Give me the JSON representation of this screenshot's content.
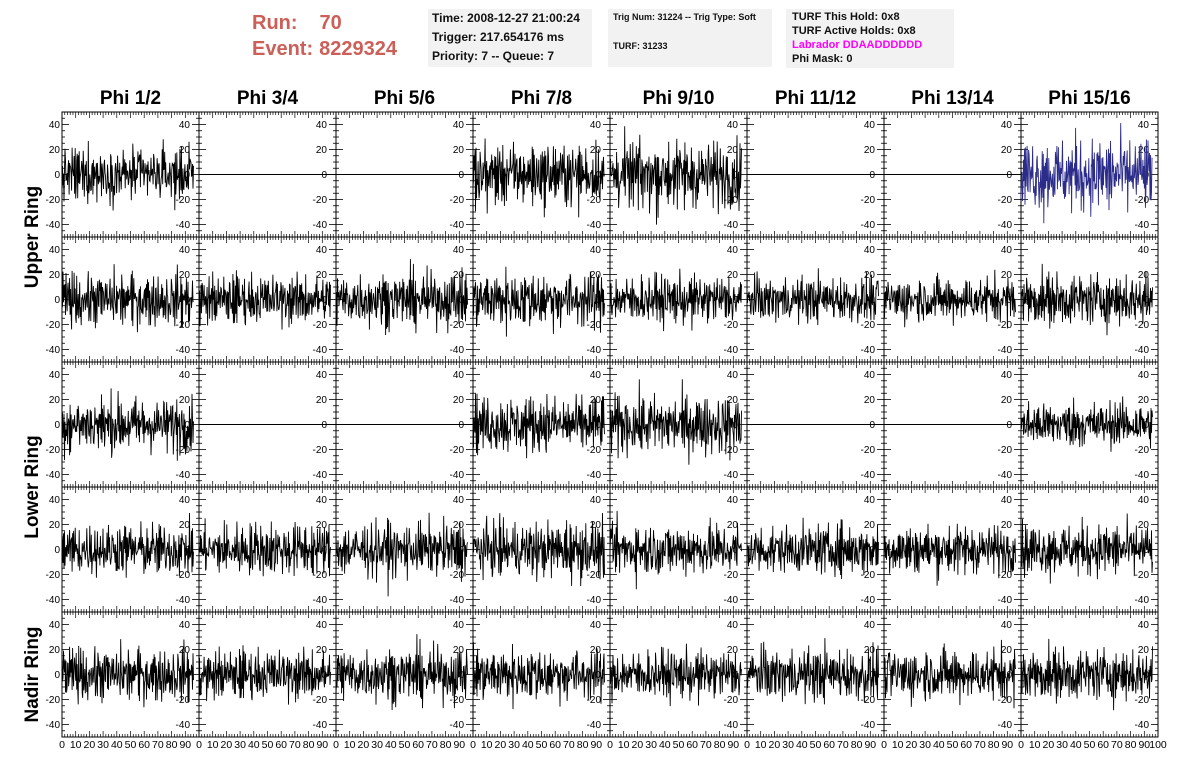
{
  "header": {
    "run_label": "Run:",
    "run_value": "70",
    "event_label": "Event:",
    "event_value": "8229324",
    "time": "Time: 2008-12-27 21:00:24",
    "trigger": "Trigger: 217.654176 ms",
    "priority": "Priority: 7 -- Queue: 7",
    "trig_num": "Trig Num: 31224 -- Trig Type: Soft",
    "turf": "TURF: 31233",
    "turf_this_hold": "TURF This Hold: 0x8",
    "turf_active_holds": "TURF Active Holds: 0x8",
    "labrador": "Labrador DDAADDDDDD",
    "phi_mask": "Phi Mask: 0"
  },
  "colors": {
    "header_red": "#cc5f58",
    "labrador_magenta": "#ff00ff",
    "trace_default": "#000000",
    "trace_highlight": "#2b2b8a",
    "info_box_bg": "#f2f2f2"
  },
  "chart_data": {
    "type": "line",
    "columns": [
      "Phi 1/2",
      "Phi 3/4",
      "Phi 5/6",
      "Phi 7/8",
      "Phi 9/10",
      "Phi 11/12",
      "Phi 13/14",
      "Phi 15/16"
    ],
    "rows": [
      "Upper Ring",
      "Lower Ring",
      "Nadir Ring"
    ],
    "row_label_spans": [
      [
        0,
        1
      ],
      [
        2,
        3
      ],
      [
        4,
        4
      ]
    ],
    "subplot_rows": 5,
    "ylim": [
      -50,
      50
    ],
    "yticks": [
      "-40",
      "-20",
      "0",
      "20",
      "40"
    ],
    "xlim": [
      0,
      100
    ],
    "xtick_labels": [
      "0",
      "10",
      "20",
      "30",
      "40",
      "50",
      "60",
      "70",
      "80",
      "90",
      "100"
    ],
    "x_extent_of_traces": 96,
    "flat_channels": [
      [
        0,
        1
      ],
      [
        0,
        2
      ],
      [
        0,
        5
      ],
      [
        0,
        6
      ],
      [
        2,
        1
      ],
      [
        2,
        2
      ],
      [
        2,
        5
      ],
      [
        2,
        6
      ]
    ],
    "highlighted_channel": [
      0,
      7
    ],
    "trace_amplitude": [
      [
        14,
        0,
        0,
        16,
        18,
        0,
        0,
        20
      ],
      [
        14,
        13,
        14,
        15,
        13,
        12,
        12,
        14
      ],
      [
        15,
        0,
        0,
        15,
        16,
        0,
        0,
        12
      ],
      [
        14,
        14,
        14,
        15,
        14,
        13,
        13,
        14
      ],
      [
        14,
        13,
        14,
        14,
        13,
        14,
        14,
        14
      ]
    ]
  }
}
